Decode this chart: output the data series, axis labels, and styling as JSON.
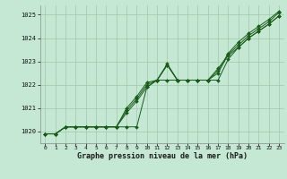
{
  "xlabel": "Graphe pression niveau de la mer (hPa)",
  "bg_color": "#c5e8d5",
  "grid_color": "#a0c8a8",
  "line_color": "#1a5c1a",
  "xlim": [
    -0.5,
    23.5
  ],
  "ylim": [
    1019.5,
    1025.4
  ],
  "yticks": [
    1020,
    1021,
    1022,
    1023,
    1024,
    1025
  ],
  "xticks": [
    0,
    1,
    2,
    3,
    4,
    5,
    6,
    7,
    8,
    9,
    10,
    11,
    12,
    13,
    14,
    15,
    16,
    17,
    18,
    19,
    20,
    21,
    22,
    23
  ],
  "series": [
    [
      1019.9,
      1019.9,
      1020.2,
      1020.2,
      1020.2,
      1020.2,
      1020.2,
      1020.2,
      1020.2,
      1020.2,
      1021.9,
      1022.2,
      1022.2,
      1022.2,
      1022.2,
      1022.2,
      1022.2,
      1022.2,
      1023.1,
      1023.6,
      1024.0,
      1024.3,
      1024.6,
      1024.95
    ],
    [
      1019.9,
      1019.9,
      1020.2,
      1020.2,
      1020.2,
      1020.2,
      1020.2,
      1020.2,
      1020.8,
      1021.3,
      1021.9,
      1022.2,
      1022.85,
      1022.2,
      1022.2,
      1022.2,
      1022.2,
      1022.5,
      1023.3,
      1023.7,
      1024.1,
      1024.4,
      1024.7,
      1025.1
    ],
    [
      1019.9,
      1019.9,
      1020.2,
      1020.2,
      1020.2,
      1020.2,
      1020.2,
      1020.2,
      1020.9,
      1021.4,
      1022.0,
      1022.2,
      1022.85,
      1022.2,
      1022.2,
      1022.2,
      1022.2,
      1022.6,
      1023.35,
      1023.82,
      1024.2,
      1024.5,
      1024.8,
      1025.15
    ],
    [
      1019.9,
      1019.9,
      1020.2,
      1020.2,
      1020.2,
      1020.2,
      1020.2,
      1020.2,
      1021.0,
      1021.5,
      1022.1,
      1022.2,
      1022.9,
      1022.2,
      1022.2,
      1022.2,
      1022.2,
      1022.7,
      1023.25,
      1023.6,
      1024.0,
      1024.3,
      1024.6,
      1024.95
    ]
  ]
}
